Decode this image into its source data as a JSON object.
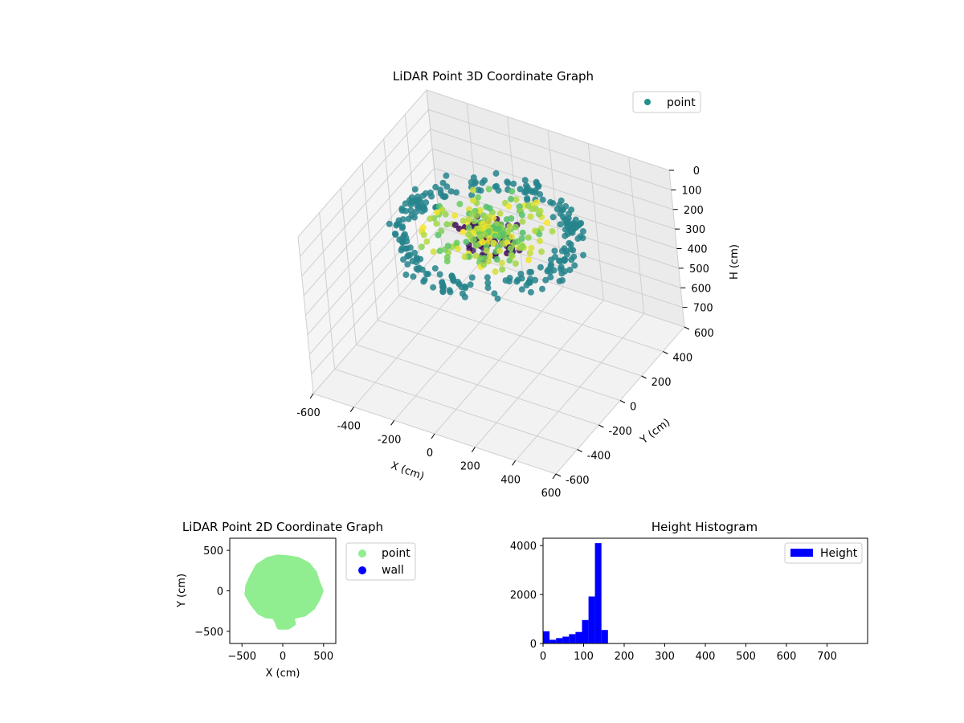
{
  "chart_data": [
    {
      "type": "scatter",
      "projection": "3d",
      "title": "LiDAR Point 3D Coordinate Graph",
      "xlabel": "X (cm)",
      "ylabel": "Y (cm)",
      "zlabel": "H (cm)",
      "xlim": [
        -600,
        600
      ],
      "ylim": [
        -600,
        600
      ],
      "zlim": [
        0,
        800
      ],
      "z_inverted": true,
      "xticks": [
        -600,
        -400,
        -200,
        0,
        200,
        400,
        600
      ],
      "yticks": [
        -600,
        -400,
        -200,
        0,
        200,
        400,
        600
      ],
      "zticks": [
        0,
        100,
        200,
        300,
        400,
        500,
        600,
        700
      ],
      "colormap": "viridis",
      "grid": true,
      "legend": {
        "placement": "top-right",
        "entries": [
          {
            "label": "point",
            "color": "#21918c"
          }
        ]
      },
      "series": [
        {
          "name": "point",
          "description_of_distribution": "ring of points radius ~350-450 cm at heights ~100-200 cm, dense interior"
        }
      ]
    },
    {
      "type": "scatter",
      "title": "LiDAR Point 2D Coordinate Graph",
      "xlabel": "X (cm)",
      "ylabel": "Y (cm)",
      "xlim": [
        -650,
        650
      ],
      "ylim": [
        -650,
        650
      ],
      "xticks": [
        -500,
        0,
        500
      ],
      "yticks": [
        -500,
        0,
        500
      ],
      "legend": {
        "placement": "outside-right",
        "entries": [
          {
            "label": "point",
            "color": "#90ee90"
          },
          {
            "label": "wall",
            "color": "#0000ff"
          }
        ]
      },
      "series": [
        {
          "name": "point",
          "color": "#90ee90",
          "outline": [
            [
              -380,
              150
            ],
            [
              -300,
              300
            ],
            [
              -180,
              380
            ],
            [
              -60,
              410
            ],
            [
              60,
              400
            ],
            [
              180,
              380
            ],
            [
              300,
              320
            ],
            [
              380,
              220
            ],
            [
              420,
              100
            ],
            [
              460,
              0
            ],
            [
              420,
              -100
            ],
            [
              360,
              -200
            ],
            [
              260,
              -280
            ],
            [
              160,
              -300
            ],
            [
              100,
              -330
            ],
            [
              120,
              -400
            ],
            [
              60,
              -440
            ],
            [
              -40,
              -440
            ],
            [
              -60,
              -380
            ],
            [
              -100,
              -310
            ],
            [
              -200,
              -300
            ],
            [
              -280,
              -260
            ],
            [
              -360,
              -160
            ],
            [
              -430,
              -40
            ],
            [
              -420,
              60
            ]
          ]
        },
        {
          "name": "wall",
          "color": "#0000ff",
          "points": []
        }
      ]
    },
    {
      "type": "histogram",
      "title": "Height Histogram",
      "xlabel": "",
      "ylabel": "",
      "xlim": [
        0,
        800
      ],
      "ylim": [
        0,
        4300
      ],
      "xticks": [
        0,
        100,
        200,
        300,
        400,
        500,
        600,
        700
      ],
      "yticks": [
        0,
        2000,
        4000
      ],
      "color": "#0000ff",
      "legend": {
        "placement": "top-right",
        "entries": [
          {
            "label": "Height",
            "color": "#0000ff"
          }
        ]
      },
      "bin_width": 16,
      "bins": [
        {
          "x0": 0,
          "value": 500
        },
        {
          "x0": 16,
          "value": 150
        },
        {
          "x0": 32,
          "value": 220
        },
        {
          "x0": 48,
          "value": 280
        },
        {
          "x0": 64,
          "value": 380
        },
        {
          "x0": 80,
          "value": 470
        },
        {
          "x0": 96,
          "value": 960
        },
        {
          "x0": 112,
          "value": 1920
        },
        {
          "x0": 128,
          "value": 4100
        },
        {
          "x0": 144,
          "value": 550
        }
      ]
    }
  ]
}
